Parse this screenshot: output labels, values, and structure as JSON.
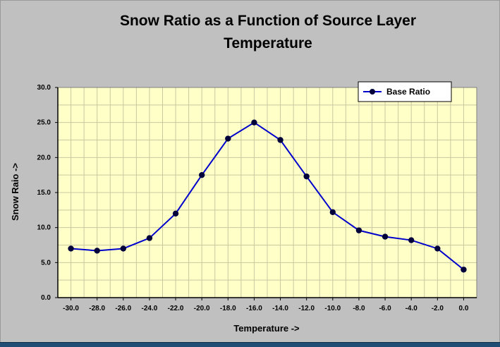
{
  "chart_data": {
    "type": "line",
    "title_lines": [
      "Snow Ratio as a Function of Source Layer",
      "Temperature"
    ],
    "xlabel": "Temperature ->",
    "ylabel": "Snow Raio ->",
    "x": [
      -30,
      -28,
      -26,
      -24,
      -22,
      -20,
      -18,
      -16,
      -14,
      -12,
      -10,
      -8,
      -6,
      -4,
      -2,
      0
    ],
    "x_tick_labels": [
      "-30.0",
      "-28.0",
      "-26.0",
      "-24.0",
      "-22.0",
      "-20.0",
      "-18.0",
      "-16.0",
      "-14.0",
      "-12.0",
      "-10.0",
      "-8.0",
      "-6.0",
      "-4.0",
      "-2.0",
      "0.0"
    ],
    "ylim": [
      0,
      30
    ],
    "y_ticks": [
      0,
      5,
      10,
      15,
      20,
      25,
      30
    ],
    "y_tick_labels": [
      "0.0",
      "5.0",
      "10.0",
      "15.0",
      "20.0",
      "25.0",
      "30.0"
    ],
    "series": [
      {
        "name": "Base Ratio",
        "color": "#0000cc",
        "values": [
          7.0,
          6.7,
          7.0,
          8.5,
          12.0,
          17.5,
          22.7,
          25.0,
          22.5,
          17.3,
          12.2,
          9.6,
          8.7,
          8.2,
          7.0,
          4.0
        ]
      }
    ],
    "grid": true,
    "legend_position": "top-right",
    "plot_background": "#ffffc8",
    "grid_color": "#c8c8a0"
  }
}
